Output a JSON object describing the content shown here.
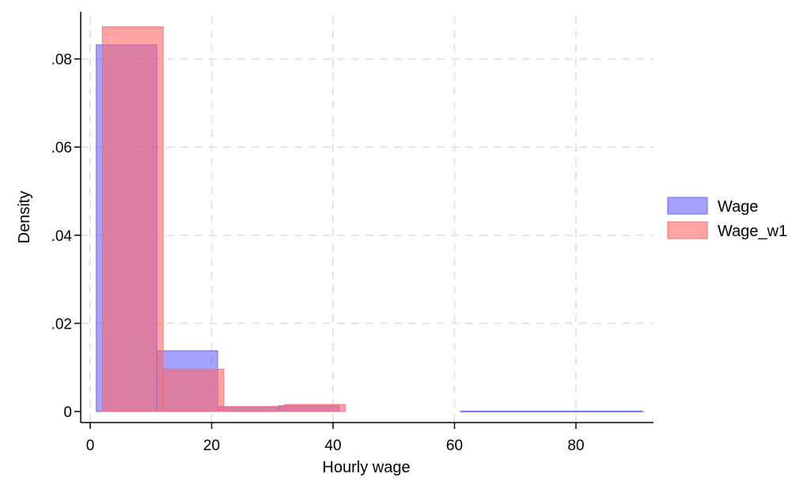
{
  "chart_data": {
    "type": "bar",
    "subtype": "overlaid-histogram",
    "xlabel": "Hourly wage",
    "ylabel": "Density",
    "xlim": [
      -1,
      92
    ],
    "ylim": [
      0,
      0.088
    ],
    "xticks": [
      0,
      20,
      40,
      60,
      80
    ],
    "xtick_labels": [
      "0",
      "20",
      "40",
      "60",
      "80"
    ],
    "yticks": [
      0,
      0.02,
      0.04,
      0.06,
      0.08
    ],
    "ytick_labels": [
      "0",
      ".02",
      ".04",
      ".06",
      ".08"
    ],
    "grid": true,
    "legend_position": "right",
    "series": [
      {
        "name": "Wage",
        "color": "#6666ff",
        "bins": [
          {
            "x0": 1.0,
            "x1": 11.0,
            "y": 0.0832
          },
          {
            "x0": 11.0,
            "x1": 21.0,
            "y": 0.0138
          },
          {
            "x0": 21.0,
            "x1": 31.0,
            "y": 0.0011
          },
          {
            "x0": 31.0,
            "x1": 41.0,
            "y": 0.0013
          },
          {
            "x0": 61.0,
            "x1": 91.0,
            "y": 0.0001
          }
        ]
      },
      {
        "name": "Wage_w1",
        "color": "#ff6666",
        "bins": [
          {
            "x0": 2.0,
            "x1": 12.0,
            "y": 0.0873
          },
          {
            "x0": 12.0,
            "x1": 22.0,
            "y": 0.0096
          },
          {
            "x0": 22.0,
            "x1": 32.0,
            "y": 0.0011
          },
          {
            "x0": 32.0,
            "x1": 42.0,
            "y": 0.0016
          }
        ]
      }
    ]
  }
}
